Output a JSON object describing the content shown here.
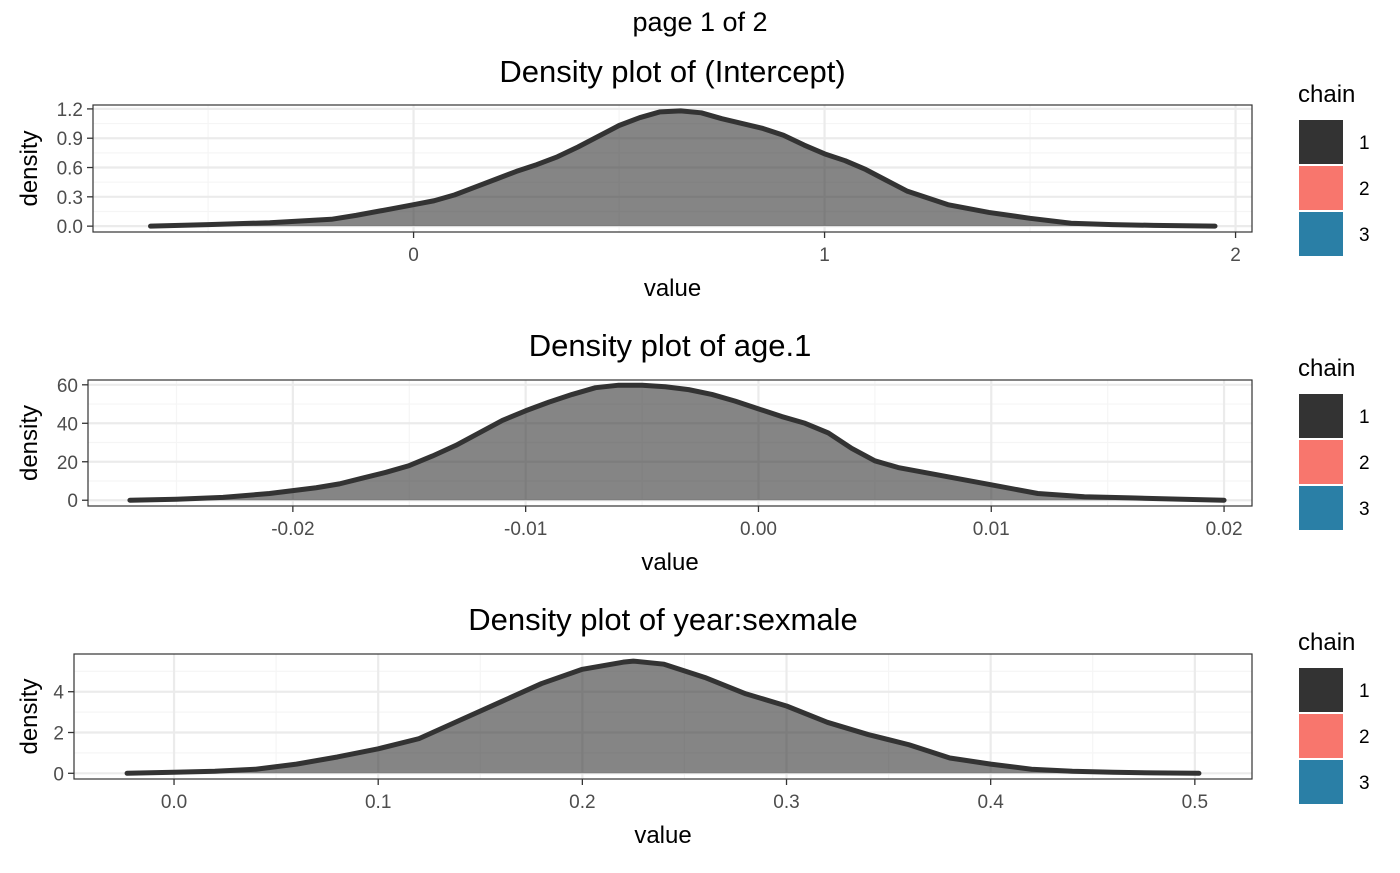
{
  "page_title": "page 1 of 2",
  "legend": {
    "title": "chain",
    "items": [
      {
        "label": "1",
        "color": "#333333"
      },
      {
        "label": "2",
        "color": "#F8766D"
      },
      {
        "label": "3",
        "color": "#2A7FA6"
      }
    ]
  },
  "chart_data": [
    {
      "type": "area",
      "title": "Density plot of  (Intercept)",
      "xlabel": "value",
      "ylabel": "density",
      "xlim": [
        -0.78,
        2.04
      ],
      "ylim": [
        -0.06,
        1.24
      ],
      "x_ticks": [
        0,
        1,
        2
      ],
      "x_tick_labels": [
        "0",
        "1",
        "2"
      ],
      "y_ticks": [
        0,
        0.3,
        0.6,
        0.9,
        1.2
      ],
      "y_tick_labels": [
        "0.0",
        "0.3",
        "0.6",
        "0.9",
        "1.2"
      ],
      "grid": true,
      "series": [
        {
          "name": "1",
          "color": "#333333",
          "x": [
            -0.64,
            -0.5,
            -0.35,
            -0.2,
            -0.14,
            -0.05,
            0.0,
            0.05,
            0.1,
            0.15,
            0.2,
            0.25,
            0.3,
            0.35,
            0.4,
            0.45,
            0.5,
            0.55,
            0.6,
            0.65,
            0.7,
            0.75,
            0.8,
            0.85,
            0.9,
            0.95,
            1.0,
            1.05,
            1.1,
            1.15,
            1.2,
            1.3,
            1.4,
            1.5,
            1.6,
            1.7,
            1.8,
            1.95
          ],
          "y": [
            0.0,
            0.015,
            0.035,
            0.07,
            0.11,
            0.18,
            0.22,
            0.26,
            0.32,
            0.4,
            0.48,
            0.56,
            0.63,
            0.71,
            0.81,
            0.92,
            1.03,
            1.11,
            1.17,
            1.18,
            1.16,
            1.1,
            1.05,
            1.0,
            0.93,
            0.83,
            0.74,
            0.67,
            0.58,
            0.47,
            0.36,
            0.22,
            0.14,
            0.08,
            0.03,
            0.015,
            0.008,
            0.0
          ]
        }
      ]
    },
    {
      "type": "area",
      "title": "Density plot of  age.1",
      "xlabel": "value",
      "ylabel": "density",
      "xlim": [
        -0.0288,
        0.0212
      ],
      "ylim": [
        -3,
        62.5
      ],
      "x_ticks": [
        -0.02,
        -0.01,
        0.0,
        0.01,
        0.02
      ],
      "x_tick_labels": [
        "-0.02",
        "-0.01",
        "0.00",
        "0.01",
        "0.02"
      ],
      "y_ticks": [
        0,
        20,
        40,
        60
      ],
      "y_tick_labels": [
        "0",
        "20",
        "40",
        "60"
      ],
      "grid": true,
      "series": [
        {
          "name": "1",
          "color": "#333333",
          "x": [
            -0.027,
            -0.025,
            -0.023,
            -0.021,
            -0.02,
            -0.019,
            -0.018,
            -0.017,
            -0.016,
            -0.015,
            -0.014,
            -0.013,
            -0.012,
            -0.011,
            -0.01,
            -0.009,
            -0.008,
            -0.007,
            -0.006,
            -0.005,
            -0.004,
            -0.003,
            -0.002,
            -0.001,
            0.0,
            0.001,
            0.002,
            0.003,
            0.004,
            0.005,
            0.006,
            0.008,
            0.01,
            0.012,
            0.014,
            0.016,
            0.018,
            0.02
          ],
          "y": [
            0.0,
            0.5,
            1.5,
            3.5,
            5,
            6.5,
            8.5,
            11.5,
            14.5,
            18,
            23,
            28.5,
            35,
            41.5,
            46.5,
            51,
            55,
            58.5,
            59.8,
            59.8,
            59,
            57.5,
            55,
            51.5,
            47.5,
            43.5,
            40,
            35,
            27,
            20.5,
            17,
            12.5,
            8,
            3.5,
            1.8,
            1.2,
            0.6,
            0.0
          ]
        }
      ]
    },
    {
      "type": "area",
      "title": "Density plot of  year:sexmale",
      "xlabel": "value",
      "ylabel": "density",
      "xlim": [
        -0.049,
        0.528
      ],
      "ylim": [
        -0.28,
        5.85
      ],
      "x_ticks": [
        0.0,
        0.1,
        0.2,
        0.3,
        0.4,
        0.5
      ],
      "x_tick_labels": [
        "0.0",
        "0.1",
        "0.2",
        "0.3",
        "0.4",
        "0.5"
      ],
      "y_ticks": [
        0,
        2,
        4
      ],
      "y_tick_labels": [
        "0",
        "2",
        "4"
      ],
      "grid": true,
      "series": [
        {
          "name": "1",
          "color": "#333333",
          "x": [
            -0.023,
            0.0,
            0.02,
            0.04,
            0.06,
            0.08,
            0.1,
            0.12,
            0.14,
            0.16,
            0.18,
            0.2,
            0.22,
            0.225,
            0.24,
            0.26,
            0.28,
            0.3,
            0.32,
            0.34,
            0.36,
            0.38,
            0.4,
            0.42,
            0.44,
            0.46,
            0.48,
            0.502
          ],
          "y": [
            0.0,
            0.05,
            0.1,
            0.2,
            0.45,
            0.8,
            1.2,
            1.7,
            2.6,
            3.5,
            4.4,
            5.1,
            5.45,
            5.5,
            5.35,
            4.7,
            3.9,
            3.3,
            2.5,
            1.9,
            1.4,
            0.75,
            0.45,
            0.2,
            0.1,
            0.05,
            0.02,
            0.0
          ]
        }
      ]
    }
  ]
}
